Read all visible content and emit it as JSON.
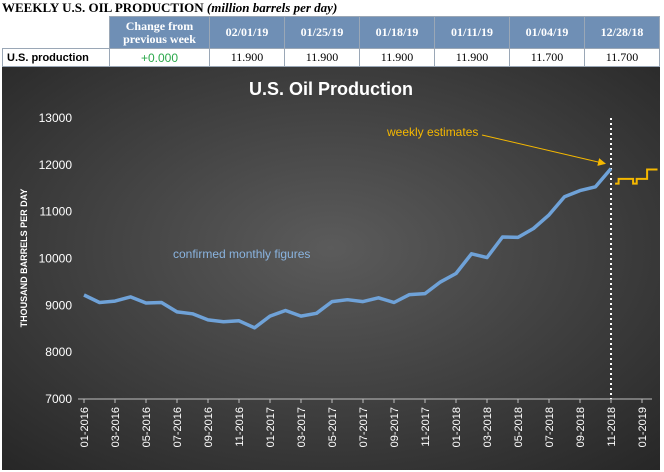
{
  "header": {
    "title": "WEEKLY U.S. OIL PRODUCTION",
    "subtitle": "(million barrels per day)"
  },
  "table": {
    "change_header_line1": "Change from",
    "change_header_line2": "previous week",
    "dates": [
      "02/01/19",
      "01/25/19",
      "01/18/19",
      "01/11/19",
      "01/04/19",
      "12/28/18"
    ],
    "row_label": "U.S. production",
    "change": "+0.000",
    "values": [
      "11.900",
      "11.900",
      "11.900",
      "11.900",
      "11.700",
      "11.700"
    ]
  },
  "colors": {
    "chart_bg_center": "#5b5b5b",
    "chart_bg_edge": "#262626",
    "monthly_line": "#6fa2d8",
    "weekly_line": "#f5b800",
    "annotation_weekly": "#f5b800",
    "annotation_monthly": "#8ab4e0",
    "table_header_bg": "#6f8fb5",
    "change_positive": "#2aa84a"
  },
  "chart_data": {
    "type": "line",
    "title": "U.S. Oil Production",
    "ylabel": "THOUSAND BARRELS PER DAY",
    "xlabel": "",
    "ylim": [
      7000,
      13000
    ],
    "yticks": [
      7000,
      8000,
      9000,
      10000,
      11000,
      12000,
      13000
    ],
    "xtick_labels": [
      "01-2016",
      "03-2016",
      "05-2016",
      "07-2016",
      "09-2016",
      "11-2016",
      "01-2017",
      "03-2017",
      "05-2017",
      "07-2017",
      "09-2017",
      "11-2017",
      "01-2018",
      "03-2018",
      "05-2018",
      "07-2018",
      "09-2018",
      "11-2018",
      "01-2019"
    ],
    "grid": false,
    "legend": "none",
    "series": [
      {
        "values": [
          [
            "2016-01",
            9220
          ],
          [
            "2016-02",
            9060
          ],
          [
            "2016-03",
            9090
          ],
          [
            "2016-04",
            9180
          ],
          [
            "2016-05",
            9050
          ],
          [
            "2016-06",
            9060
          ],
          [
            "2016-07",
            8860
          ],
          [
            "2016-08",
            8820
          ],
          [
            "2016-09",
            8690
          ],
          [
            "2016-10",
            8650
          ],
          [
            "2016-11",
            8670
          ],
          [
            "2016-12",
            8520
          ],
          [
            "2017-01",
            8770
          ],
          [
            "2017-02",
            8890
          ],
          [
            "2017-03",
            8770
          ],
          [
            "2017-04",
            8830
          ],
          [
            "2017-05",
            9080
          ],
          [
            "2017-06",
            9120
          ],
          [
            "2017-07",
            9080
          ],
          [
            "2017-08",
            9160
          ],
          [
            "2017-09",
            9060
          ],
          [
            "2017-10",
            9230
          ],
          [
            "2017-11",
            9250
          ],
          [
            "2017-12",
            9500
          ],
          [
            "2018-01",
            9680
          ],
          [
            "2018-02",
            10100
          ],
          [
            "2018-03",
            10020
          ],
          [
            "2018-04",
            10460
          ],
          [
            "2018-05",
            10450
          ],
          [
            "2018-06",
            10640
          ],
          [
            "2018-07",
            10930
          ],
          [
            "2018-08",
            11320
          ],
          [
            "2018-09",
            11450
          ],
          [
            "2018-10",
            11530
          ],
          [
            "2018-11",
            11920
          ]
        ]
      },
      {
        "values": [
          [
            "2018-11-09",
            11600
          ],
          [
            "2018-11-16",
            11700
          ],
          [
            "2018-11-23",
            11700
          ],
          [
            "2018-11-30",
            11700
          ],
          [
            "2018-12-07",
            11700
          ],
          [
            "2018-12-14",
            11600
          ],
          [
            "2018-12-21",
            11700
          ],
          [
            "2018-12-28",
            11700
          ],
          [
            "2019-01-04",
            11700
          ],
          [
            "2019-01-11",
            11900
          ],
          [
            "2019-01-18",
            11900
          ],
          [
            "2019-01-25",
            11900
          ],
          [
            "2019-02-01",
            11900
          ]
        ]
      }
    ],
    "divider_at": "2018-11",
    "annotations": [
      {
        "text": "weekly estimates",
        "arrow_to": [
          "2018-11",
          11920
        ]
      },
      {
        "text": "confirmed monthly figures"
      }
    ]
  }
}
